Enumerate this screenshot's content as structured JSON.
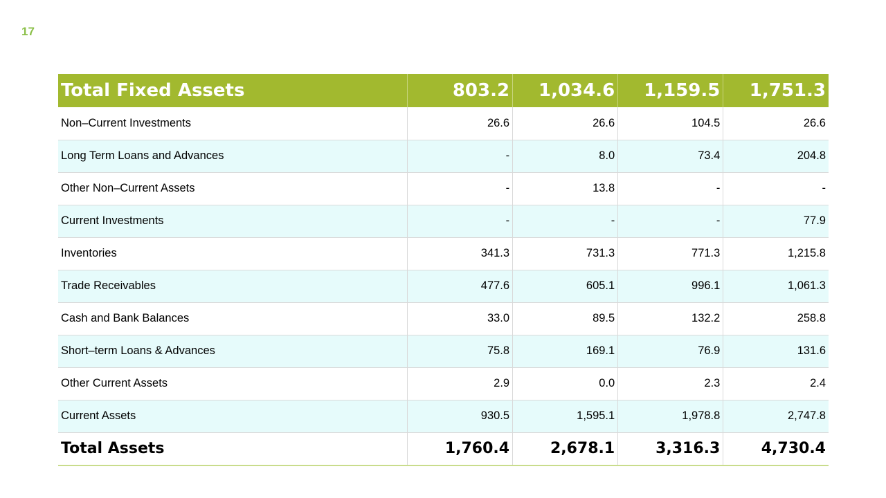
{
  "slide": {
    "page_number": "17"
  },
  "table": {
    "header": {
      "label": "Total Fixed Assets",
      "values": [
        "803.2",
        "1,034.6",
        "1,159.5",
        "1,751.3"
      ]
    },
    "rows": [
      {
        "label": "Non–Current Investments",
        "values": [
          "26.6",
          "26.6",
          "104.5",
          "26.6"
        ]
      },
      {
        "label": "Long Term Loans and Advances",
        "values": [
          "-",
          "8.0",
          "73.4",
          "204.8"
        ]
      },
      {
        "label": "Other Non–Current Assets",
        "values": [
          "-",
          "13.8",
          "-",
          "-"
        ]
      },
      {
        "label": "Current Investments",
        "values": [
          "-",
          "-",
          "-",
          "77.9"
        ]
      },
      {
        "label": "Inventories",
        "values": [
          "341.3",
          "731.3",
          "771.3",
          "1,215.8"
        ]
      },
      {
        "label": "Trade Receivables",
        "values": [
          "477.6",
          "605.1",
          "996.1",
          "1,061.3"
        ]
      },
      {
        "label": "Cash and Bank Balances",
        "values": [
          "33.0",
          "89.5",
          "132.2",
          "258.8"
        ]
      },
      {
        "label": "Short–term Loans & Advances",
        "values": [
          "75.8",
          "169.1",
          "76.9",
          "131.6"
        ]
      },
      {
        "label": "Other Current Assets",
        "values": [
          "2.9",
          "0.0",
          "2.3",
          "2.4"
        ]
      },
      {
        "label": "Current Assets",
        "values": [
          "930.5",
          "1,595.1",
          "1,978.8",
          "2,747.8"
        ]
      }
    ],
    "total": {
      "label": "Total Assets",
      "values": [
        "1,760.4",
        "2,678.1",
        "3,316.3",
        "4,730.4"
      ]
    }
  },
  "colors": {
    "header_bg": "#a2b92f",
    "page_number": "#8cc04a",
    "row_stripe": "#e6fbfb",
    "grid_line": "#d9d9d9"
  }
}
